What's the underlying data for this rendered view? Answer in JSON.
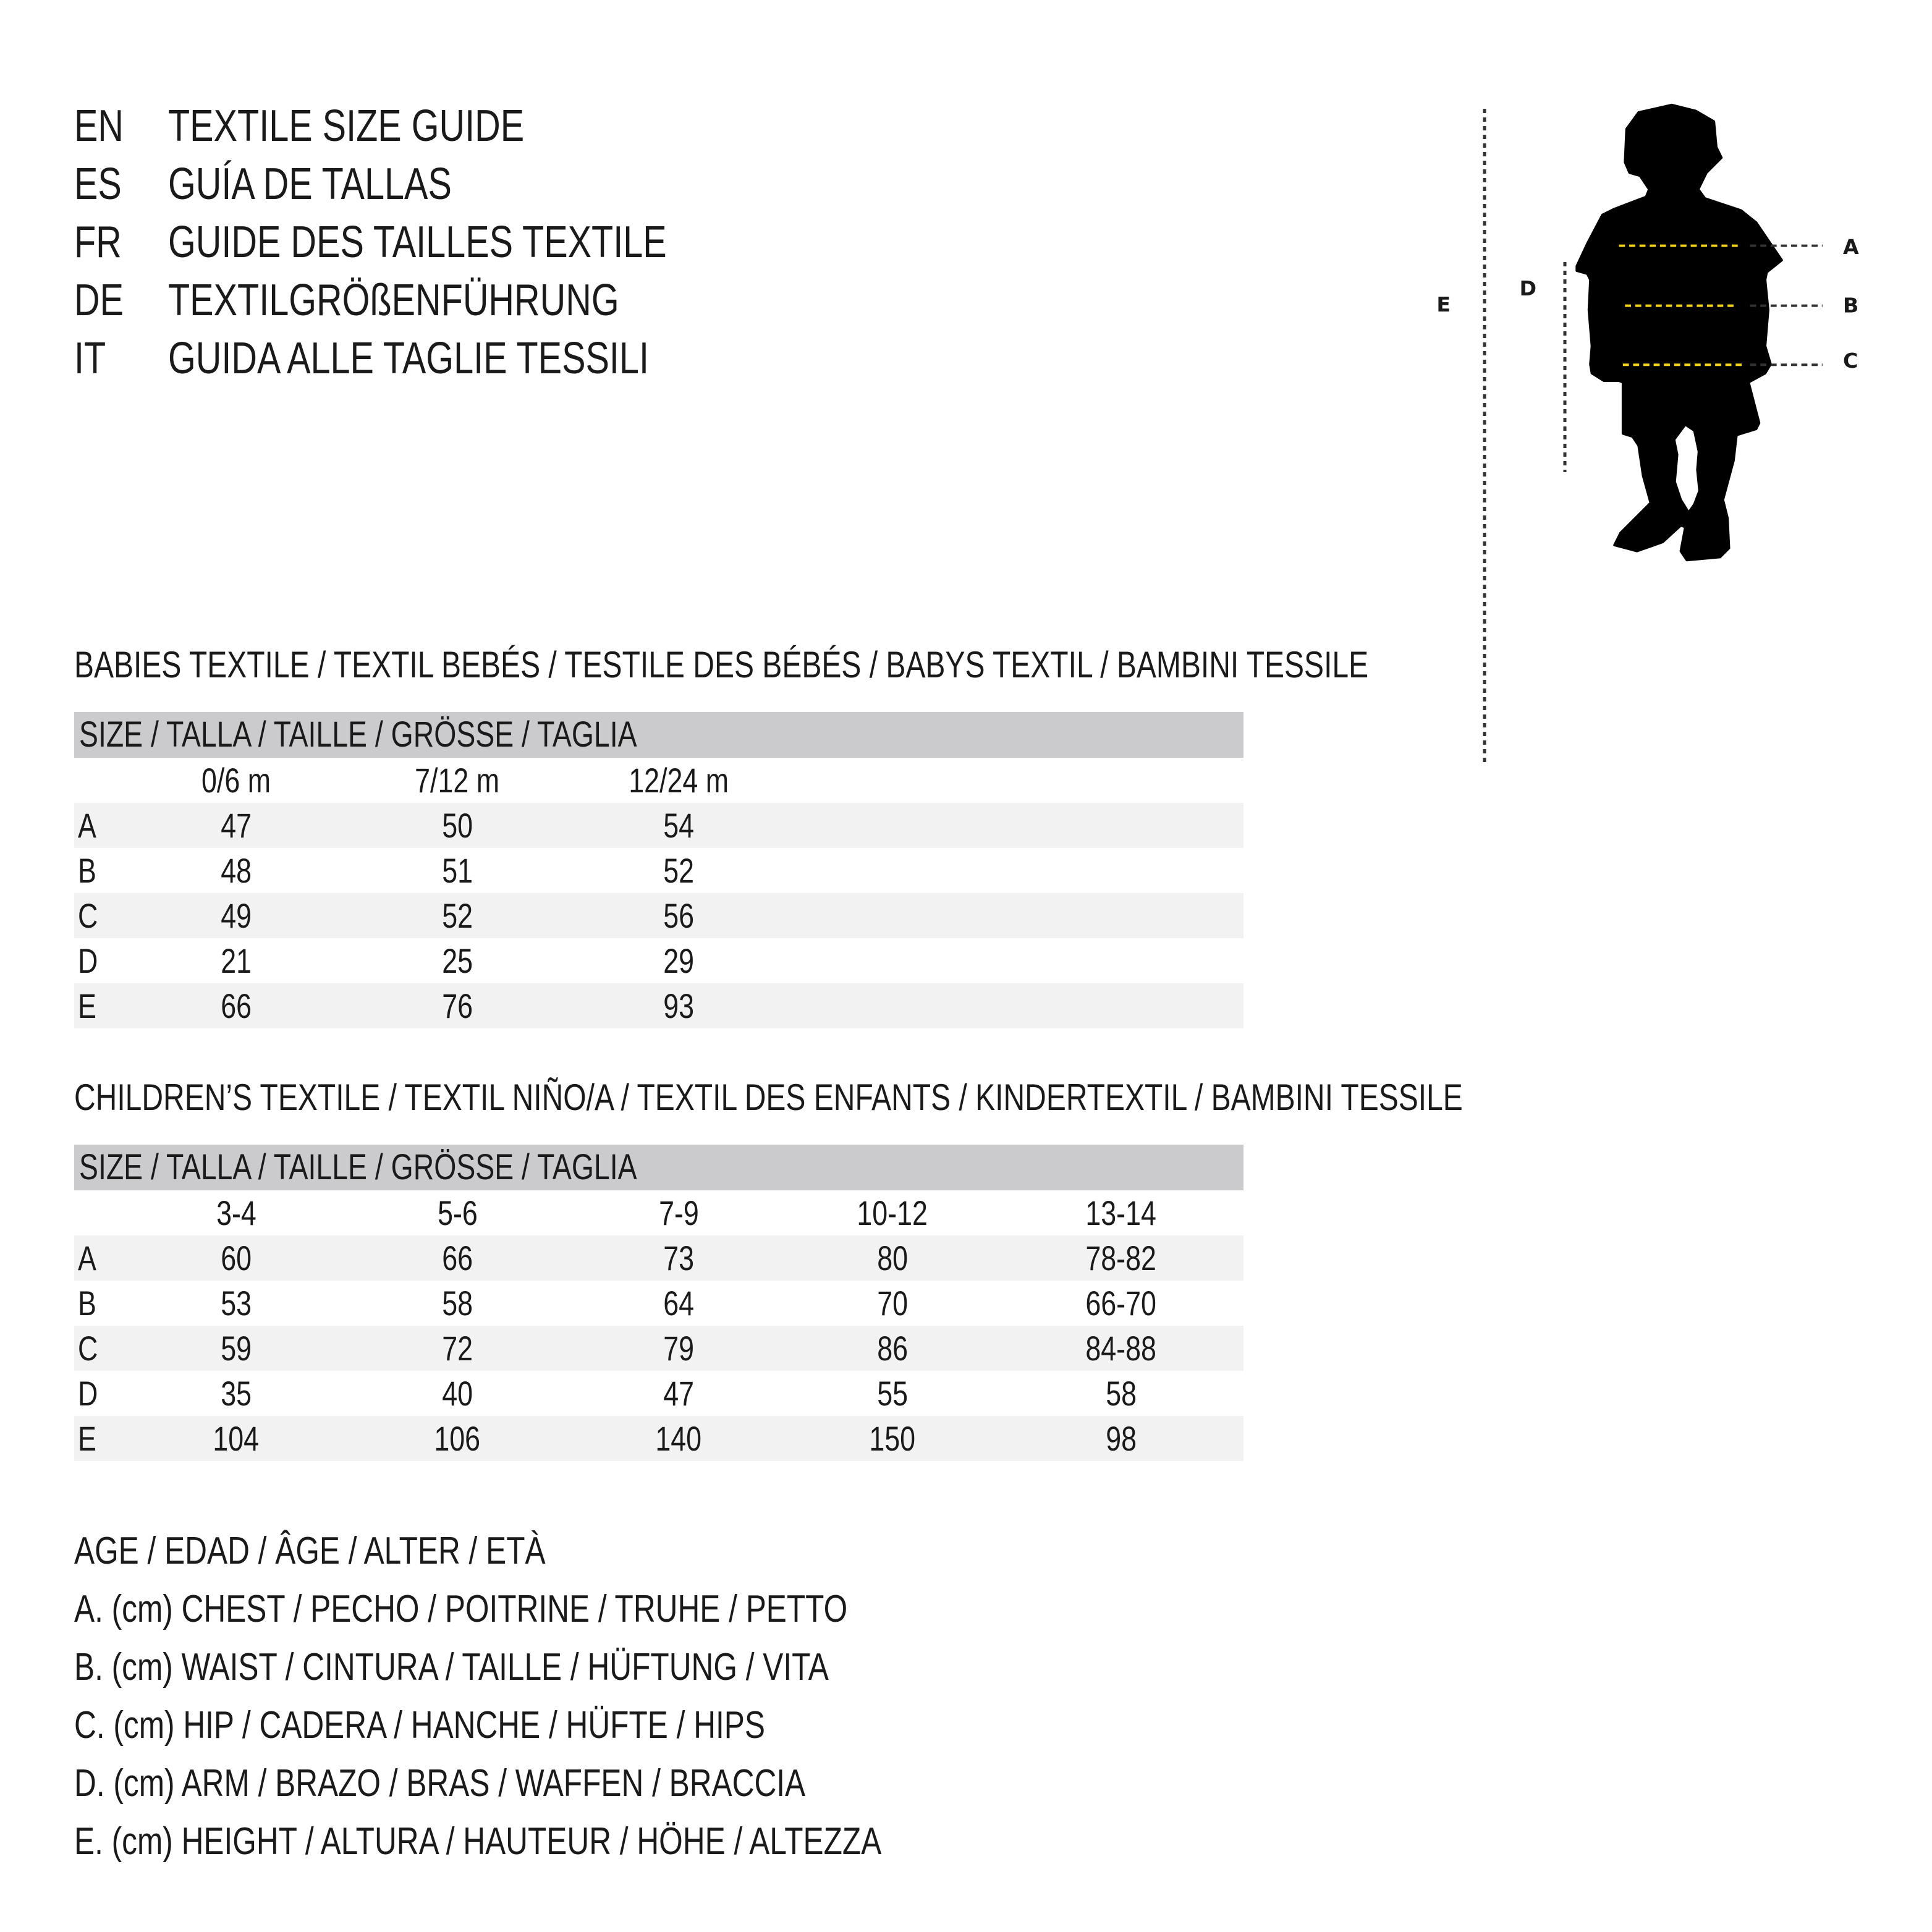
{
  "titles": [
    {
      "code": "EN",
      "text": "TEXTILE SIZE GUIDE"
    },
    {
      "code": "ES",
      "text": "GUÍA DE TALLAS"
    },
    {
      "code": "FR",
      "text": "GUIDE DES TAILLES TEXTILE"
    },
    {
      "code": "DE",
      "text": "TEXTILGRÖßENFÜHRUNG"
    },
    {
      "code": "IT",
      "text": "GUIDA ALLE TAGLIE TESSILI"
    }
  ],
  "babies": {
    "heading": "BABIES TEXTILE / TEXTIL BEBÉS / TESTILE DES BÉBÉS / BABYS TEXTIL / BAMBINI TESSILE",
    "size_label": "SIZE / TALLA / TAILLE / GRÖSSE / TAGLIA",
    "columns": [
      "0/6 m",
      "7/12 m",
      "12/24 m"
    ],
    "rows": [
      {
        "label": "A",
        "values": [
          "47",
          "50",
          "54"
        ]
      },
      {
        "label": "B",
        "values": [
          "48",
          "51",
          "52"
        ]
      },
      {
        "label": "C",
        "values": [
          "49",
          "52",
          "56"
        ]
      },
      {
        "label": "D",
        "values": [
          "21",
          "25",
          "29"
        ]
      },
      {
        "label": "E",
        "values": [
          "66",
          "76",
          "93"
        ]
      }
    ]
  },
  "children": {
    "heading": "CHILDREN’S TEXTILE / TEXTIL NIÑO/A / TEXTIL DES ENFANTS / KINDERTEXTIL / BAMBINI TESSILE",
    "size_label": "SIZE / TALLA / TAILLE / GRÖSSE / TAGLIA",
    "columns": [
      "3-4",
      "5-6",
      "7-9",
      "10-12",
      "13-14"
    ],
    "rows": [
      {
        "label": "A",
        "values": [
          "60",
          "66",
          "73",
          "80",
          "78-82"
        ]
      },
      {
        "label": "B",
        "values": [
          "53",
          "58",
          "64",
          "70",
          "66-70"
        ]
      },
      {
        "label": "C",
        "values": [
          "59",
          "72",
          "79",
          "86",
          "84-88"
        ]
      },
      {
        "label": "D",
        "values": [
          "35",
          "40",
          "47",
          "55",
          "58"
        ]
      },
      {
        "label": "E",
        "values": [
          "104",
          "106",
          "140",
          "150",
          "98"
        ]
      }
    ]
  },
  "legend": [
    "AGE / EDAD / ÂGE / ALTER / ETÀ",
    "A. (cm) CHEST / PECHO / POITRINE / TRUHE / PETTO",
    "B. (cm) WAIST / CINTURA / TAILLE / HÜFTUNG / VITA",
    "C. (cm) HIP / CADERA / HANCHE / HÜFTE / HIPS",
    "D. (cm) ARM / BRAZO / BRAS / WAFFEN / BRACCIA",
    "E. (cm) HEIGHT / ALTURA / HAUTEUR / HÖHE / ALTEZZA"
  ],
  "figure": {
    "labels": {
      "A": "A",
      "B": "B",
      "C": "C",
      "D": "D",
      "E": "E"
    },
    "colors": {
      "silhouette": "#000000",
      "measure_line": "#f2d21a",
      "guide_line": "#333333"
    }
  }
}
